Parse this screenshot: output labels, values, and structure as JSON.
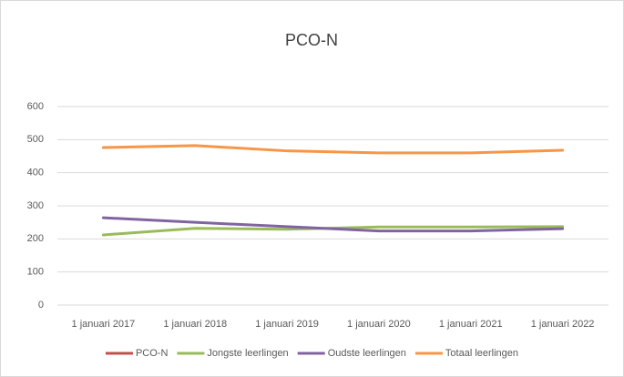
{
  "chart_data": {
    "type": "line",
    "title": "PCO-N",
    "categories": [
      "1 januari 2017",
      "1 januari 2018",
      "1 januari 2019",
      "1 januari 2020",
      "1 januari 2021",
      "1 januari 2022"
    ],
    "series": [
      {
        "name": "PCO-N",
        "color": "#c0504d",
        "values": [
          null,
          null,
          null,
          null,
          null,
          null
        ]
      },
      {
        "name": "Jongste leerlingen",
        "color": "#9bbb59",
        "values": [
          212,
          232,
          229,
          236,
          236,
          237
        ]
      },
      {
        "name": "Oudste leerlingen",
        "color": "#8064a2",
        "values": [
          264,
          250,
          237,
          224,
          224,
          231
        ]
      },
      {
        "name": "Totaal leerlingen",
        "color": "#f79646",
        "values": [
          476,
          482,
          466,
          460,
          460,
          468
        ]
      }
    ],
    "ylim": [
      0,
      600
    ],
    "yticks": [
      0,
      100,
      200,
      300,
      400,
      500,
      600
    ],
    "grid": true,
    "legend": "bottom"
  }
}
